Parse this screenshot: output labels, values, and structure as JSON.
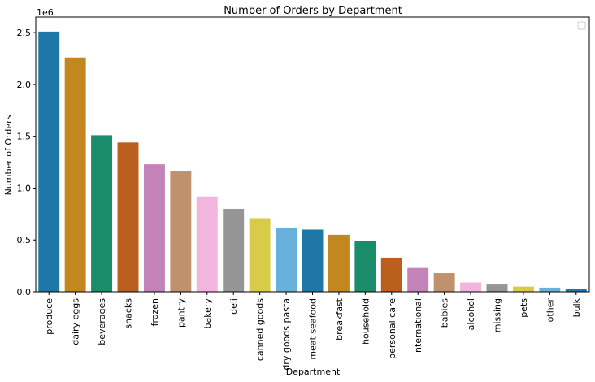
{
  "chart_data": {
    "type": "bar",
    "title": "Number of Orders by Department",
    "xlabel": "Department",
    "ylabel": "Number of Orders",
    "y_offset_label": "1e6",
    "ylim": [
      0,
      2.65
    ],
    "y_ticks": [
      0.0,
      0.5,
      1.0,
      1.5,
      2.0,
      2.5
    ],
    "y_tick_labels": [
      "0.0",
      "0.5",
      "1.0",
      "1.5",
      "2.0",
      "2.5"
    ],
    "categories": [
      "produce",
      "dairy eggs",
      "beverages",
      "snacks",
      "frozen",
      "pantry",
      "bakery",
      "deli",
      "canned goods",
      "dry goods pasta",
      "meat seafood",
      "breakfast",
      "household",
      "personal care",
      "international",
      "babies",
      "alcohol",
      "missing",
      "pets",
      "other",
      "bulk"
    ],
    "values": [
      2.51,
      2.26,
      1.51,
      1.44,
      1.23,
      1.16,
      0.92,
      0.8,
      0.71,
      0.62,
      0.6,
      0.55,
      0.49,
      0.33,
      0.23,
      0.18,
      0.09,
      0.07,
      0.05,
      0.04,
      0.03
    ],
    "colors": [
      "#1f77a8",
      "#c4871f",
      "#1a8c6a",
      "#ba5f1e",
      "#c382b8",
      "#bf916c",
      "#f2b6de",
      "#959595",
      "#d8cb49",
      "#68b1dc",
      "#1f77a8",
      "#c4871f",
      "#1a8c6a",
      "#ba5f1e",
      "#c382b8",
      "#bf916c",
      "#f2b6de",
      "#959595",
      "#d8cb49",
      "#68b1dc",
      "#1f77a8"
    ],
    "grid": false,
    "legend": "top-right (empty)"
  }
}
